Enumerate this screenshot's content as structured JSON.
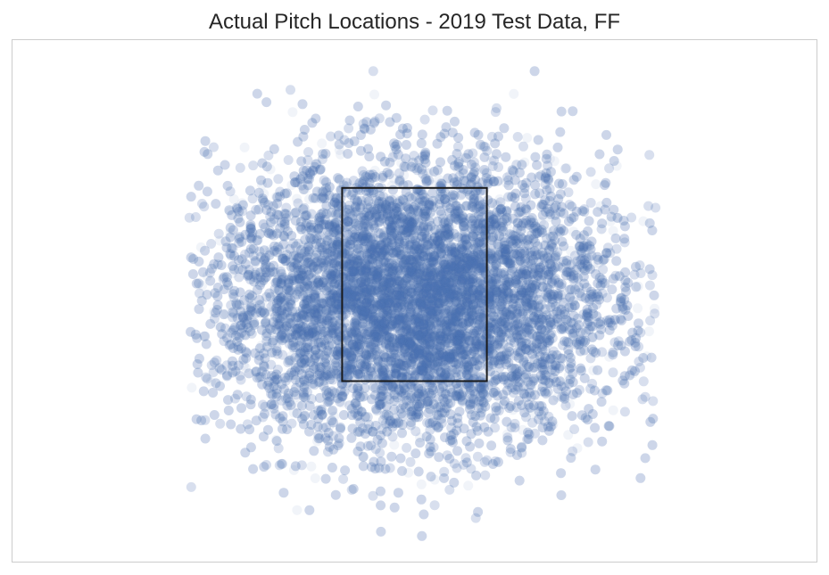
{
  "chart_data": {
    "type": "scatter",
    "title": "Actual Pitch Locations - 2019 Test Data, FF",
    "xlabel": "",
    "ylabel": "",
    "xlim": [
      -2.5,
      2.5
    ],
    "ylim": [
      -0.2,
      5.2
    ],
    "axes_ticks_visible": false,
    "grid": false,
    "point_color": "#4c72b0",
    "point_alpha": 0.08,
    "point_style": "filled circle",
    "points": {
      "distribution": "bivariate normal cloud, dense near zone center",
      "x_mean": 0.0,
      "x_sd": 0.62,
      "y_mean": 2.5,
      "y_sd": 0.72,
      "x_extent": [
        -1.4,
        1.5
      ],
      "y_extent": [
        0.0,
        5.0
      ],
      "count_visible_approx": 20000
    },
    "strike_zone": {
      "x": [
        -0.45,
        0.45
      ],
      "y": [
        1.67,
        3.67
      ],
      "color": "#1a1a1a"
    }
  }
}
